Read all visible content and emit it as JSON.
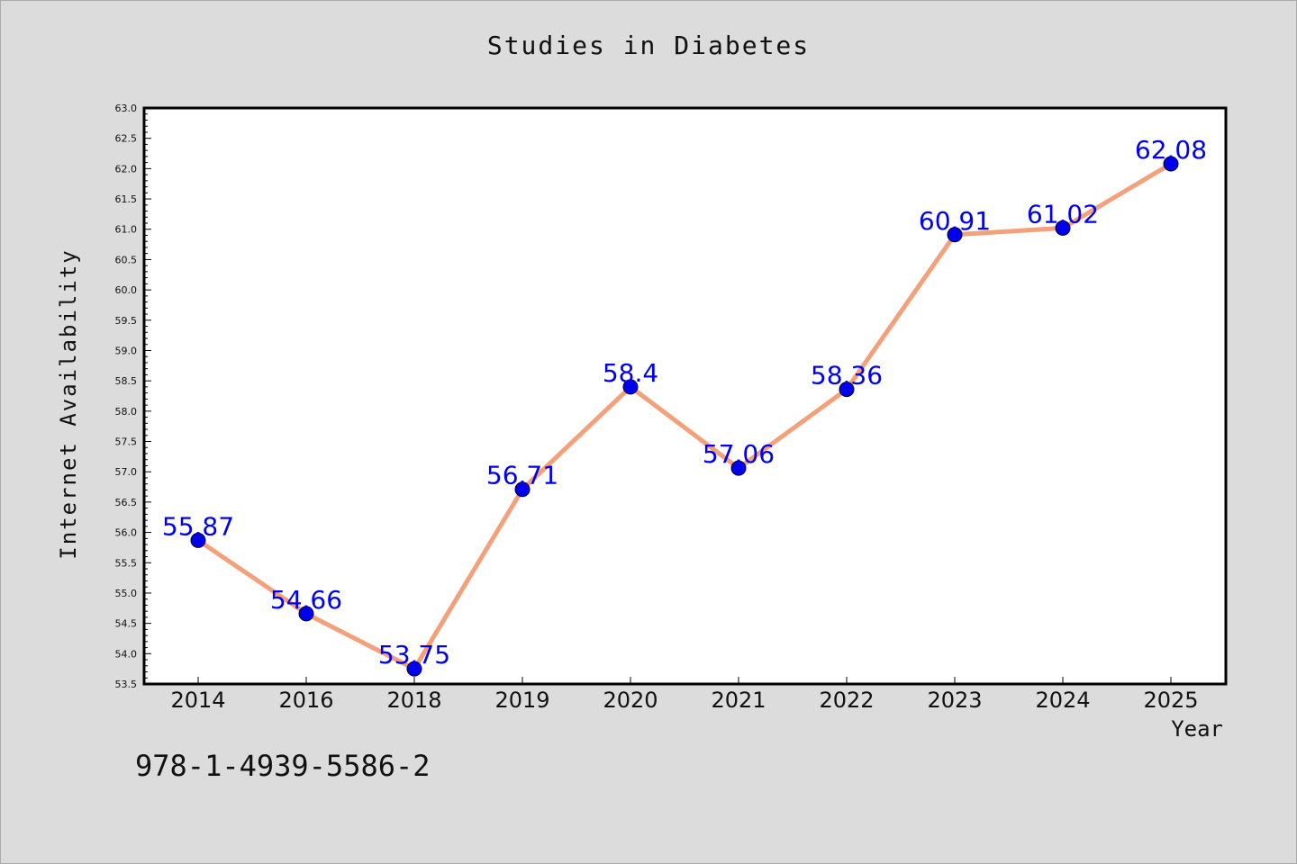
{
  "chart_data": {
    "type": "line",
    "title": "Studies in Diabetes",
    "xlabel": "Year",
    "ylabel": "Internet Availability",
    "categories": [
      "2014",
      "2016",
      "2018",
      "2019",
      "2020",
      "2021",
      "2022",
      "2023",
      "2024",
      "2025"
    ],
    "series": [
      {
        "values": [
          55.87,
          54.66,
          53.75,
          56.71,
          58.4,
          57.06,
          58.36,
          60.91,
          61.02,
          62.08
        ],
        "data_labels": [
          "55.87",
          "54.66",
          "53.75",
          "56.71",
          "58.4",
          "57.06",
          "58.36",
          "60.91",
          "61.02",
          "62.08"
        ],
        "line_color": "#f4a07a",
        "marker_color": "#0000ee",
        "label_color": "#0000ee"
      }
    ],
    "ylim": [
      53.5,
      63.0
    ],
    "yticks": [
      "53.5",
      "54.0",
      "54.5",
      "55.0",
      "55.5",
      "56.0",
      "56.5",
      "57.0",
      "57.5",
      "58.0",
      "58.5",
      "59.0",
      "59.5",
      "60.0",
      "60.5",
      "61.0",
      "61.5",
      "62.0",
      "62.5",
      "63.0"
    ],
    "grid": false,
    "legend": "none"
  },
  "footer": {
    "isbn": "978-1-4939-5586-2"
  },
  "colors": {
    "background": "#dcdcdc",
    "plot_background": "#ffffff",
    "axis": "#000000"
  }
}
